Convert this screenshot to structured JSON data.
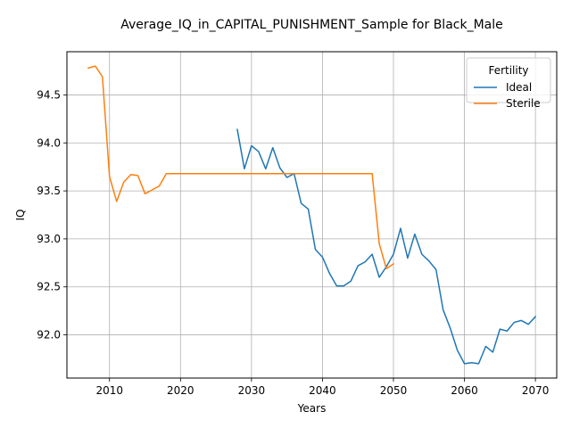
{
  "chart_data": {
    "type": "line",
    "title": "Average_IQ_in_CAPITAL_PUNISHMENT_Sample for Black_Male",
    "xlabel": "Years",
    "ylabel": "IQ",
    "xlim": [
      2004,
      2073
    ],
    "ylim": [
      91.55,
      94.95
    ],
    "xticks": [
      2010,
      2020,
      2030,
      2040,
      2050,
      2060,
      2070
    ],
    "yticks": [
      92.0,
      92.5,
      93.0,
      93.5,
      94.0,
      94.5
    ],
    "ytick_labels": [
      "92.0",
      "92.5",
      "93.0",
      "93.5",
      "94.0",
      "94.5"
    ],
    "grid": true,
    "legend": {
      "title": "Fertility",
      "position": "top-right"
    },
    "series": [
      {
        "name": "Ideal",
        "color": "#1f77b4",
        "x": [
          2028,
          2029,
          2030,
          2031,
          2032,
          2033,
          2034,
          2035,
          2036,
          2037,
          2038,
          2039,
          2040,
          2041,
          2042,
          2043,
          2044,
          2045,
          2046,
          2047,
          2048,
          2049,
          2050,
          2051,
          2052,
          2053,
          2054,
          2055,
          2056,
          2057,
          2058,
          2059,
          2060,
          2061,
          2062,
          2063,
          2064,
          2065,
          2066,
          2067,
          2068,
          2069,
          2070
        ],
        "y": [
          94.14,
          93.73,
          93.97,
          93.91,
          93.73,
          93.95,
          93.74,
          93.64,
          93.68,
          93.37,
          93.31,
          92.89,
          92.81,
          92.64,
          92.51,
          92.51,
          92.56,
          92.72,
          92.76,
          92.84,
          92.6,
          92.71,
          92.84,
          93.11,
          92.8,
          93.05,
          92.84,
          92.77,
          92.68,
          92.26,
          92.07,
          91.84,
          91.7,
          91.71,
          91.7,
          91.88,
          91.82,
          92.06,
          92.04,
          92.13,
          92.15,
          92.11,
          92.19
        ]
      },
      {
        "name": "Sterile",
        "color": "#ff7f0e",
        "x": [
          2007,
          2008,
          2009,
          2010,
          2011,
          2012,
          2013,
          2014,
          2015,
          2016,
          2017,
          2018,
          2019,
          2020,
          2021,
          2022,
          2023,
          2024,
          2025,
          2026,
          2027,
          2028,
          2029,
          2030,
          2031,
          2032,
          2033,
          2034,
          2035,
          2036,
          2037,
          2038,
          2039,
          2040,
          2041,
          2042,
          2043,
          2044,
          2045,
          2046,
          2047,
          2048,
          2049,
          2050
        ],
        "y": [
          94.78,
          94.8,
          94.69,
          93.65,
          93.39,
          93.59,
          93.67,
          93.66,
          93.47,
          93.51,
          93.55,
          93.68,
          93.68,
          93.68,
          93.68,
          93.68,
          93.68,
          93.68,
          93.68,
          93.68,
          93.68,
          93.68,
          93.68,
          93.68,
          93.68,
          93.68,
          93.68,
          93.68,
          93.68,
          93.68,
          93.68,
          93.68,
          93.68,
          93.68,
          93.68,
          93.68,
          93.68,
          93.68,
          93.68,
          93.68,
          93.68,
          92.95,
          92.69,
          92.74
        ]
      }
    ]
  }
}
